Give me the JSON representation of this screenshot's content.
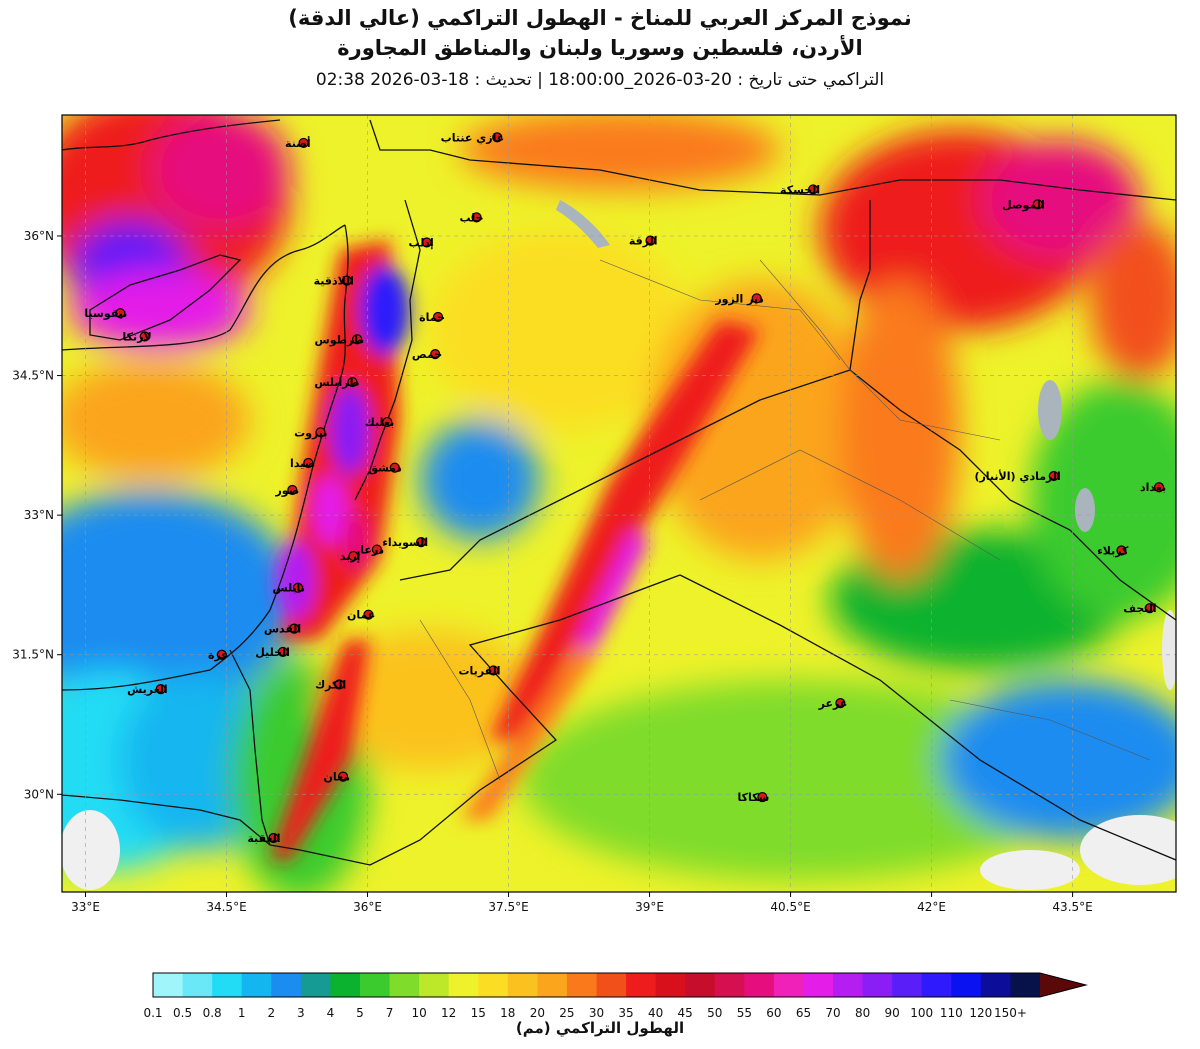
{
  "header": {
    "title_line1": "نموذج المركز العربي للمناخ - الهطول التراكمي (عالي الدقة)",
    "title_line2": "الأردن، فلسطين وسوريا ولبنان والمناطق المجاورة",
    "title_line3": "التراكمي حتى تاريخ : 20-03-2026_18:00:00 | تحديث : 18-03-2026 02:38"
  },
  "map": {
    "lon_range": [
      32.75,
      44.6
    ],
    "lat_range": [
      28.95,
      37.3
    ],
    "lon_ticks": [
      {
        "value": 33.0,
        "label": "33°E"
      },
      {
        "value": 34.5,
        "label": "34.5°E"
      },
      {
        "value": 36.0,
        "label": "36°E"
      },
      {
        "value": 37.5,
        "label": "37.5°E"
      },
      {
        "value": 39.0,
        "label": "39°E"
      },
      {
        "value": 40.5,
        "label": "40.5°E"
      },
      {
        "value": 42.0,
        "label": "42°E"
      },
      {
        "value": 43.5,
        "label": "43.5°E"
      }
    ],
    "lat_ticks": [
      {
        "value": 36.0,
        "label": "36°N"
      },
      {
        "value": 34.5,
        "label": "34.5°N"
      },
      {
        "value": 33.0,
        "label": "33°N"
      },
      {
        "value": 31.5,
        "label": "31.5°N"
      },
      {
        "value": 30.0,
        "label": "30°N"
      }
    ],
    "cities": [
      {
        "name": "أضنة",
        "lon": 35.32,
        "lat": 37.0
      },
      {
        "name": "غازي عنتاب",
        "lon": 37.38,
        "lat": 37.06
      },
      {
        "name": "الحسكة",
        "lon": 40.74,
        "lat": 36.5
      },
      {
        "name": "الموصل",
        "lon": 43.13,
        "lat": 36.34
      },
      {
        "name": "حلب",
        "lon": 37.16,
        "lat": 36.2
      },
      {
        "name": "إدلب",
        "lon": 36.63,
        "lat": 35.93
      },
      {
        "name": "الرقة",
        "lon": 39.01,
        "lat": 35.95
      },
      {
        "name": "اللاذقية",
        "lon": 35.78,
        "lat": 35.52
      },
      {
        "name": "نيقوسيا",
        "lon": 33.37,
        "lat": 35.17
      },
      {
        "name": "لارنكا",
        "lon": 33.63,
        "lat": 34.92
      },
      {
        "name": "حماة",
        "lon": 36.75,
        "lat": 35.13
      },
      {
        "name": "دير الزور",
        "lon": 40.14,
        "lat": 35.33
      },
      {
        "name": "طرطوس",
        "lon": 35.89,
        "lat": 34.89
      },
      {
        "name": "حمص",
        "lon": 36.72,
        "lat": 34.73
      },
      {
        "name": "طرابلس",
        "lon": 35.84,
        "lat": 34.43
      },
      {
        "name": "بعلبك",
        "lon": 36.21,
        "lat": 34.0
      },
      {
        "name": "بيروت",
        "lon": 35.5,
        "lat": 33.89
      },
      {
        "name": "صيدا",
        "lon": 35.37,
        "lat": 33.56
      },
      {
        "name": "دمشق",
        "lon": 36.29,
        "lat": 33.51
      },
      {
        "name": "صور",
        "lon": 35.2,
        "lat": 33.27
      },
      {
        "name": "الرمادي (الأنبار)",
        "lon": 43.3,
        "lat": 33.42
      },
      {
        "name": "بغداد",
        "lon": 44.42,
        "lat": 33.3
      },
      {
        "name": "السويداء",
        "lon": 36.57,
        "lat": 32.71
      },
      {
        "name": "درعا",
        "lon": 36.1,
        "lat": 32.63
      },
      {
        "name": "إربد",
        "lon": 35.85,
        "lat": 32.56
      },
      {
        "name": "كربلاء",
        "lon": 44.02,
        "lat": 32.62
      },
      {
        "name": "نابلس",
        "lon": 35.26,
        "lat": 32.22
      },
      {
        "name": "عمان",
        "lon": 36.01,
        "lat": 31.93
      },
      {
        "name": "النجف",
        "lon": 44.32,
        "lat": 32.0
      },
      {
        "name": "القدس",
        "lon": 35.22,
        "lat": 31.78
      },
      {
        "name": "الخليل",
        "lon": 35.1,
        "lat": 31.53
      },
      {
        "name": "غزة",
        "lon": 34.45,
        "lat": 31.5
      },
      {
        "name": "القريات",
        "lon": 37.34,
        "lat": 31.33
      },
      {
        "name": "الكرك",
        "lon": 35.7,
        "lat": 31.18
      },
      {
        "name": "العريش",
        "lon": 33.8,
        "lat": 31.13
      },
      {
        "name": "عرعر",
        "lon": 41.03,
        "lat": 30.98
      },
      {
        "name": "معان",
        "lon": 35.74,
        "lat": 30.19
      },
      {
        "name": "سكاكا",
        "lon": 40.2,
        "lat": 29.97
      },
      {
        "name": "العقبة",
        "lon": 35.0,
        "lat": 29.53
      }
    ]
  },
  "legend": {
    "title": "الهطول التراكمي (مم)",
    "bins": [
      {
        "label": "0.1",
        "color": "#9ff5fa"
      },
      {
        "label": "0.5",
        "color": "#6ae8f7"
      },
      {
        "label": "0.8",
        "color": "#21dcf4"
      },
      {
        "label": "1",
        "color": "#14b6f0"
      },
      {
        "label": "2",
        "color": "#1b8cf0"
      },
      {
        "label": "3",
        "color": "#169a94"
      },
      {
        "label": "4",
        "color": "#0bb22f"
      },
      {
        "label": "5",
        "color": "#3bcb2f"
      },
      {
        "label": "7",
        "color": "#7fdc2b"
      },
      {
        "label": "10",
        "color": "#bde82a"
      },
      {
        "label": "12",
        "color": "#eef22a"
      },
      {
        "label": "15",
        "color": "#fbde24"
      },
      {
        "label": "18",
        "color": "#fbc21f"
      },
      {
        "label": "20",
        "color": "#fba51c"
      },
      {
        "label": "25",
        "color": "#fa7a1b"
      },
      {
        "label": "30",
        "color": "#f2501b"
      },
      {
        "label": "35",
        "color": "#ee1c1c"
      },
      {
        "label": "40",
        "color": "#d8101c"
      },
      {
        "label": "45",
        "color": "#c60e2c"
      },
      {
        "label": "50",
        "color": "#d61050"
      },
      {
        "label": "55",
        "color": "#e60e7e"
      },
      {
        "label": "60",
        "color": "#f021b9"
      },
      {
        "label": "65",
        "color": "#e41ee8"
      },
      {
        "label": "70",
        "color": "#b41ef0"
      },
      {
        "label": "80",
        "color": "#8a1ef4"
      },
      {
        "label": "90",
        "color": "#5a1ef8"
      },
      {
        "label": "100",
        "color": "#2e1afa"
      },
      {
        "label": "110",
        "color": "#0a12f2"
      },
      {
        "label": "120",
        "color": "#0c0e9a"
      },
      {
        "label": "150+",
        "color": "#07124a"
      }
    ],
    "overflow_color": "#5a0808"
  }
}
